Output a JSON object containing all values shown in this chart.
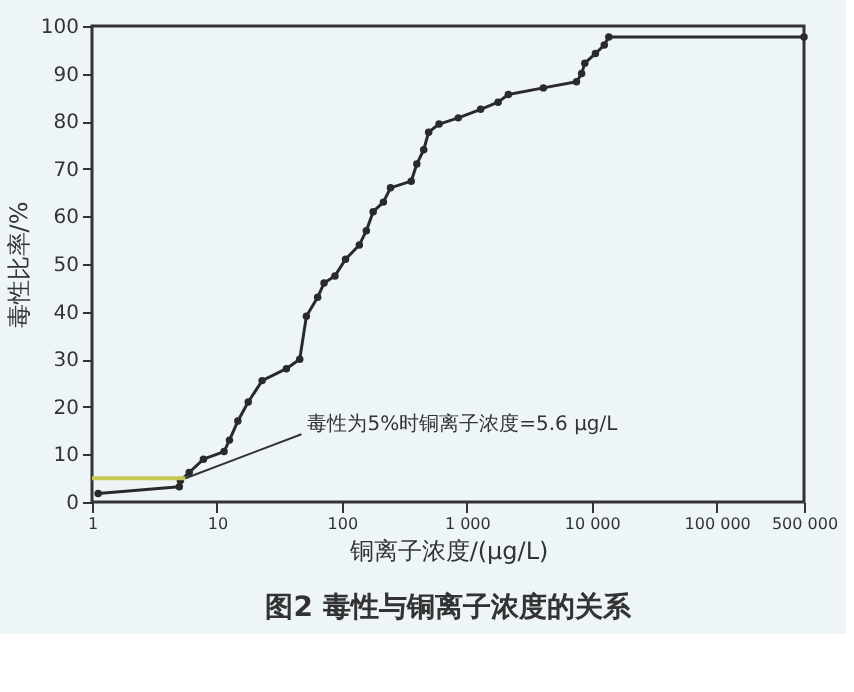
{
  "chart_data": {
    "type": "line",
    "title": "图2 毒性与铜离子浓度的关系",
    "xlabel": "铜离子浓度/(μg/L)",
    "ylabel": "毒性比率/%",
    "log": "x",
    "grid": false,
    "marker": "circle",
    "line_style": "solid",
    "xlim": [
      1,
      500000
    ],
    "xticks": [
      1,
      10,
      100,
      {
        "value": 1000,
        "label": "1 000"
      },
      {
        "value": 10000,
        "label": "10 000"
      },
      {
        "value": 100000,
        "label": "100 000"
      },
      {
        "value": 500000,
        "label": "500 000"
      }
    ],
    "ylim": [
      0,
      100
    ],
    "yticks": [
      0,
      10,
      20,
      30,
      40,
      50,
      60,
      70,
      80,
      90,
      100
    ],
    "x": [
      1.12,
      5.0,
      5.1,
      6.0,
      7.8,
      11.4,
      12.6,
      14.7,
      17.8,
      23,
      36,
      46,
      52,
      64,
      72,
      88,
      107,
      138,
      157,
      178,
      215,
      245,
      359,
      398,
      452,
      495,
      600,
      855,
      1290,
      1780,
      2150,
      4100,
      7550,
      8300,
      8800,
      10700,
      12600,
      13700,
      500000
    ],
    "series": [
      {
        "color": "#2a2a2a",
        "values": [
          1.8,
          3.2,
          4.5,
          6.2,
          9,
          10.6,
          13,
          17,
          21,
          25.5,
          28,
          30,
          39,
          43,
          46,
          47.5,
          51,
          54,
          57,
          61,
          63,
          66,
          67.4,
          71,
          74,
          77.7,
          79.4,
          80.7,
          82.5,
          84,
          85.6,
          87,
          88.3,
          90,
          92.2,
          94.2,
          96,
          97.7,
          97.7
        ]
      }
    ],
    "ref_lines": [
      {
        "axis": "y",
        "value": 5,
        "color": "#c8c850"
      }
    ],
    "annotations": [
      {
        "text": "毒性为5%时铜离子浓度=5.6 μg/L",
        "x": 5.6,
        "y": 5
      }
    ]
  }
}
